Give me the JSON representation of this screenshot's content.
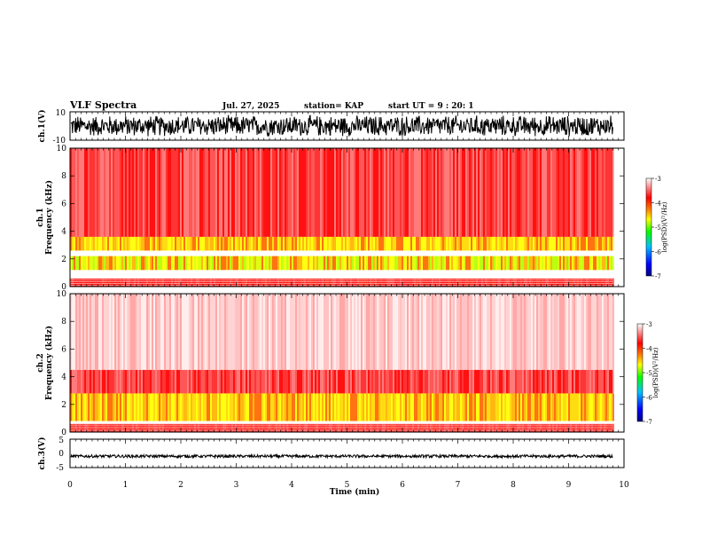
{
  "header": {
    "title": "VLF Spectra",
    "date": "Jul. 27, 2025",
    "station": "station= KAP",
    "start_ut": "start UT =  9 : 20: 1"
  },
  "chart_data": [
    {
      "name": "ch1-waveform",
      "type": "line",
      "ylabel": "ch.1(V)",
      "ylim": [
        -10,
        10
      ],
      "y_ticks": [
        {
          "v": 10,
          "label": "10"
        },
        {
          "v": -10,
          "label": "-10"
        }
      ],
      "xlim": [
        0,
        10
      ],
      "description_values": {
        "amplitude_range": [
          -8,
          8
        ]
      },
      "color": "#000000"
    },
    {
      "name": "ch1-spectrogram",
      "type": "heatmap",
      "ylabel_line1": "ch.1",
      "ylabel_line2": "Frequency (kHz)",
      "ylim": [
        0,
        10
      ],
      "y_ticks": [
        0,
        2,
        4,
        6,
        8,
        10
      ],
      "xlim": [
        0,
        10
      ],
      "data_end_min": 9.8,
      "bands": [
        {
          "from": 0,
          "to": 0.6,
          "level": "red-strong"
        },
        {
          "from": 1.2,
          "to": 2.2,
          "level": "yellow-green"
        },
        {
          "from": 2.6,
          "to": 3.6,
          "level": "yellow"
        },
        {
          "from": 3.6,
          "to": 10,
          "level": "red"
        }
      ],
      "colorbar": {
        "label": "log(PSD)(V²/Hz)",
        "range": [
          -7,
          -3
        ],
        "ticks": [
          {
            "v": -3,
            "label": "-3"
          },
          {
            "v": -4,
            "label": "-4"
          },
          {
            "v": -5,
            "label": "-5"
          },
          {
            "v": -6,
            "label": "-6"
          },
          {
            "v": -7,
            "label": "-7"
          }
        ]
      }
    },
    {
      "name": "ch2-spectrogram",
      "type": "heatmap",
      "ylabel_line1": "ch.2",
      "ylabel_line2": "Frequency (kHz)",
      "ylim": [
        0,
        10
      ],
      "y_ticks": [
        0,
        2,
        4,
        6,
        8,
        10
      ],
      "xlim": [
        0,
        10
      ],
      "data_end_min": 9.8,
      "bands": [
        {
          "from": 0,
          "to": 0.6,
          "level": "red-strong"
        },
        {
          "from": 0.8,
          "to": 2.8,
          "level": "yellow"
        },
        {
          "from": 2.8,
          "to": 4.5,
          "level": "red"
        },
        {
          "from": 4.5,
          "to": 10,
          "level": "light-red"
        }
      ],
      "colorbar": {
        "label": "log(PSD)(V²/Hz)",
        "range": [
          -7,
          -3
        ],
        "ticks": [
          {
            "v": -3,
            "label": "-3"
          },
          {
            "v": -4,
            "label": "-4"
          },
          {
            "v": -5,
            "label": "-5"
          },
          {
            "v": -6,
            "label": "-6"
          },
          {
            "v": -7,
            "label": "-7"
          }
        ]
      }
    },
    {
      "name": "ch3-waveform",
      "type": "line",
      "ylabel": "ch.3(V)",
      "ylim": [
        -5,
        5
      ],
      "y_ticks": [
        {
          "v": 5,
          "label": "5"
        },
        {
          "v": 0,
          "label": "0"
        },
        {
          "v": -5,
          "label": "-5"
        }
      ],
      "xlim": [
        0,
        10
      ],
      "description_values": {
        "center": -1,
        "amplitude_range": [
          -1.5,
          -0.5
        ]
      },
      "color": "#000000"
    }
  ],
  "x_axis": {
    "label": "Time (min)",
    "ticks": [
      0,
      1,
      2,
      3,
      4,
      5,
      6,
      7,
      8,
      9,
      10
    ]
  },
  "colors": {
    "waveform": "#000000",
    "colormap": [
      "#000080",
      "#0000ff",
      "#00c0ff",
      "#00ff00",
      "#ffff00",
      "#ff8000",
      "#ff0000",
      "#ffffff"
    ]
  }
}
